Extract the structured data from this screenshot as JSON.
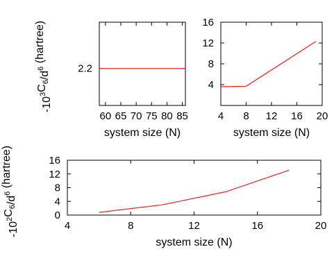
{
  "colors": {
    "line": "#e8201a",
    "axis": "#000000"
  },
  "chart_data": [
    {
      "type": "line",
      "xlabel": "system size (N)",
      "ylabel": "-10³C₆/d⁶ (hartree)",
      "xlim": [
        58,
        86
      ],
      "ylim": [
        2.0,
        2.45
      ],
      "xticks": [
        60,
        65,
        70,
        75,
        80,
        85
      ],
      "xtick_labels": [
        "60",
        "65",
        "70",
        "75",
        "80",
        "85"
      ],
      "yticks": [
        2.2
      ],
      "ytick_labels": [
        "2.2"
      ],
      "series": [
        {
          "x": [
            58,
            86
          ],
          "y": [
            2.2,
            2.2
          ]
        }
      ]
    },
    {
      "type": "line",
      "xlabel": "system size (N)",
      "ylabel": "",
      "xlim": [
        4,
        20
      ],
      "ylim": [
        0,
        16
      ],
      "xticks": [
        4,
        8,
        12,
        16,
        20
      ],
      "xtick_labels": [
        "4",
        "8",
        "12",
        "16",
        "20"
      ],
      "yticks": [
        0,
        4,
        8,
        12,
        16
      ],
      "ytick_labels": [
        "",
        "4",
        "8",
        "12",
        "16"
      ],
      "series": [
        {
          "x": [
            4,
            8,
            19
          ],
          "y": [
            3.6,
            3.7,
            12.3
          ]
        }
      ]
    },
    {
      "type": "line",
      "xlabel": "system size (N)",
      "ylabel": "-10²C₆/d⁶ (hartree)",
      "xlim": [
        4,
        20
      ],
      "ylim": [
        0,
        16
      ],
      "xticks": [
        4,
        8,
        12,
        16,
        20
      ],
      "xtick_labels": [
        "4",
        "8",
        "12",
        "16",
        "20"
      ],
      "yticks": [
        0,
        4,
        8,
        12,
        16
      ],
      "ytick_labels": [
        "0",
        "4",
        "8",
        "12",
        "16"
      ],
      "series": [
        {
          "x": [
            6,
            10,
            14,
            18
          ],
          "y": [
            0.8,
            3.0,
            6.8,
            13.1
          ]
        }
      ]
    }
  ]
}
